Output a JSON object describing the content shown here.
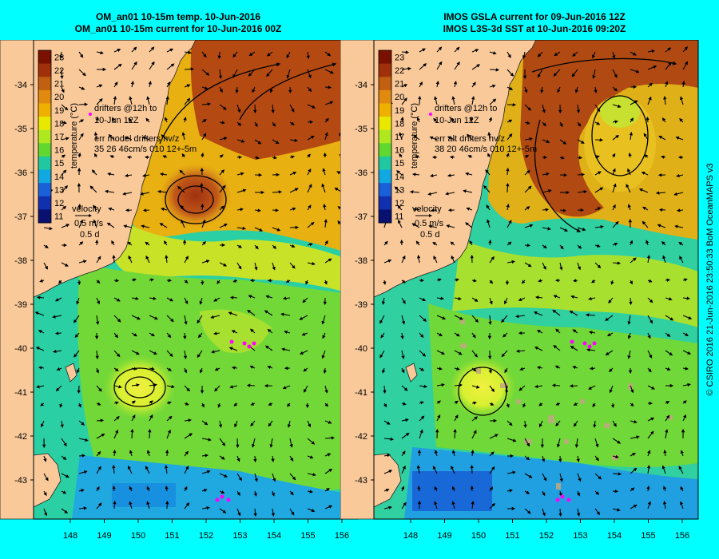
{
  "panels": [
    {
      "title_line1": "OM_an01 10-15m temp. 10-Jun-2016",
      "title_line2": "OM_an01 10-15m current for 10-Jun-2016 00Z",
      "legend_line1": "drifters @12h to",
      "legend_line2": "10-Jun 12Z",
      "error_line1": "err model drifters hv/z",
      "error_line2": "35 26 46cm/s 010 12+-5m",
      "velocity_label": "velocity",
      "velocity_value": "0.5 m/s",
      "velocity_time": "0.5 d"
    },
    {
      "title_line1": "IMOS GSLA current for 09-Jun-2016 12Z",
      "title_line2": "IMOS L3S-3d SST at 10-Jun-2016 09:20Z",
      "legend_line1": "drifters @12h to",
      "legend_line2": "10-Jun 12Z",
      "error_line1": "err alt drifters hv/z",
      "error_line2": "38 20 46cm/s 010 12+-5m",
      "velocity_label": "velocity",
      "velocity_value": "0.5 m/s",
      "velocity_time": "0.5 d"
    }
  ],
  "colorbar": {
    "label": "temperature (°C)",
    "ticks": [
      "23",
      "22",
      "21",
      "20",
      "19",
      "18",
      "17",
      "16",
      "15",
      "14",
      "13",
      "12",
      "11"
    ],
    "colors": [
      "#7a1000",
      "#a0300a",
      "#c06010",
      "#e08a10",
      "#f0b000",
      "#e8e800",
      "#b0e820",
      "#60d830",
      "#20c8a0",
      "#10a8e0",
      "#1a60d8",
      "#1030b0",
      "#081070"
    ]
  },
  "lat_labels": [
    "-34",
    "-35",
    "-36",
    "-37",
    "-38",
    "-39",
    "-40",
    "-41",
    "-42",
    "-43"
  ],
  "lon_labels": [
    "148",
    "149",
    "150",
    "151",
    "152",
    "153",
    "154",
    "155",
    "156"
  ],
  "colors": {
    "background": "#00FFFF",
    "land": "#F9C99A"
  },
  "credit": "© CSIRO 2016  21-Jun-2016 23:50:33 BoM OceanMAPS v3"
}
